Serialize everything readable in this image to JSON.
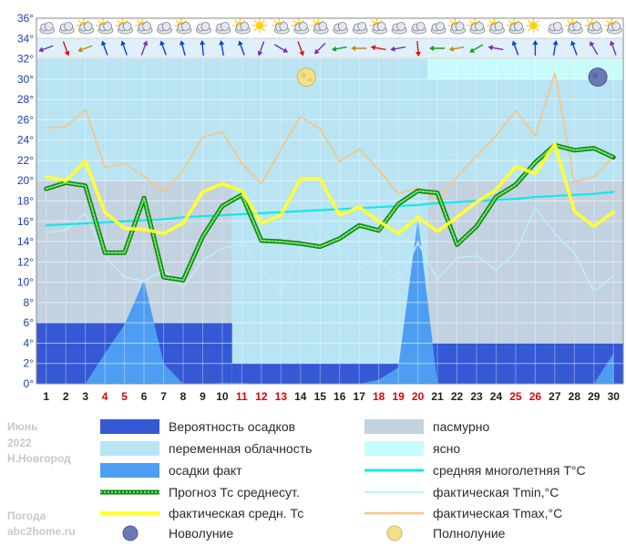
{
  "meta": {
    "month": "Июнь",
    "year": "2022",
    "city": "Н.Новгород",
    "site1": "Погода",
    "site2": "abc2home.ru"
  },
  "colors": {
    "overcast": "#c3d2e0",
    "variable": "#b9e4f4",
    "clear": "#c8fcfc",
    "prob": "#3558d4",
    "precip": "#4d9ef2",
    "forecast": "#0a8a0a",
    "forecast_dash": "#7ee07e",
    "actual": "#ffff33",
    "climate": "#12e8e8",
    "tmin": "#c0ecf8",
    "tmax": "#f9c47e",
    "red_day": "#e00000",
    "axis_text": "#1a3fb0"
  },
  "legend": [
    {
      "key": "prob",
      "label": "Вероятность осадков"
    },
    {
      "key": "overcast",
      "label": "пасмурно"
    },
    {
      "key": "variable",
      "label": "переменная облачность"
    },
    {
      "key": "clear",
      "label": "ясно"
    },
    {
      "key": "precip",
      "label": "осадки факт"
    },
    {
      "key": "climate",
      "label": "средняя многолетняя T°C"
    },
    {
      "key": "forecast",
      "label": "Прогноз Тс среднесут."
    },
    {
      "key": "tmin",
      "label": "фактическая Tmin,°C"
    },
    {
      "key": "actual",
      "label": "фактическая средн. Тс"
    },
    {
      "key": "tmax",
      "label": "фактическая Tmax,°C"
    },
    {
      "key": "new_moon",
      "label": "Новолуние"
    },
    {
      "key": "full_moon",
      "label": "Полнолуние"
    }
  ],
  "chart_data": {
    "type": "line",
    "ylim": [
      0,
      36
    ],
    "y_ticks": [
      "0°",
      "2°",
      "4°",
      "6°",
      "8°",
      "10°",
      "12°",
      "14°",
      "16°",
      "18°",
      "20°",
      "22°",
      "24°",
      "26°",
      "28°",
      "30°",
      "32°",
      "34°",
      "36°"
    ],
    "x": [
      1,
      2,
      3,
      4,
      5,
      6,
      7,
      8,
      9,
      10,
      11,
      12,
      13,
      14,
      15,
      16,
      17,
      18,
      19,
      20,
      21,
      22,
      23,
      24,
      25,
      26,
      27,
      28,
      29,
      30
    ],
    "x_labels": [
      "1",
      "2",
      "3",
      "4",
      "5",
      "6",
      "7",
      "8",
      "9",
      "10",
      "11",
      "12",
      "13",
      "14",
      "15",
      "16",
      "17",
      "18",
      "19",
      "20",
      "21",
      "22",
      "23",
      "24",
      "25",
      "26",
      "27",
      "28",
      "29",
      "30"
    ],
    "red_days": [
      4,
      5,
      11,
      12,
      13,
      18,
      19,
      20,
      25,
      26
    ],
    "background_bands": [
      {
        "from_day": 0.5,
        "to_day": 10.5,
        "sky": "overcast",
        "top": 20
      },
      {
        "from_day": 0.5,
        "to_day": 10.5,
        "sky": "variable",
        "top": 32
      },
      {
        "from_day": 10.5,
        "to_day": 20.5,
        "sky": "variable",
        "top": 32
      },
      {
        "from_day": 20.5,
        "to_day": 30.5,
        "sky": "overcast",
        "top": 20
      },
      {
        "from_day": 20.5,
        "to_day": 30.5,
        "sky": "variable",
        "top": 30
      },
      {
        "from_day": 20.5,
        "to_day": 30.5,
        "sky": "clear",
        "top": 32
      }
    ],
    "precip_probability_steps": [
      {
        "from_day": 0.5,
        "to_day": 10.5,
        "value": 6
      },
      {
        "from_day": 10.5,
        "to_day": 20.5,
        "value": 2
      },
      {
        "from_day": 20.5,
        "to_day": 30.5,
        "value": 4
      }
    ],
    "series": [
      {
        "name": "осадки факт",
        "key": "precip",
        "values": [
          0,
          0,
          0,
          3,
          5.8,
          10.2,
          2,
          0,
          0,
          0.1,
          0.1,
          0,
          0,
          0,
          0,
          0,
          0,
          0.4,
          1.6,
          16.2,
          0,
          0,
          0,
          0,
          0,
          0,
          0,
          0,
          0,
          3
        ]
      },
      {
        "name": "фактическая Tmin,°C",
        "key": "tmin",
        "values": [
          14.9,
          15.1,
          16.8,
          12.6,
          10.5,
          10.1,
          11.2,
          9.5,
          12.2,
          13.3,
          13.8,
          11.4,
          8.8,
          13.5,
          15.4,
          13.3,
          11.2,
          12.6,
          10,
          13.9,
          10.3,
          12.4,
          12.6,
          11.2,
          13,
          17.3,
          14.8,
          12.9,
          9.1,
          10.6
        ]
      },
      {
        "name": "фактическая Tmax,°C",
        "key": "tmax",
        "values": [
          25.2,
          25.3,
          27,
          21.3,
          21.7,
          20.4,
          18.9,
          21,
          24.3,
          24.8,
          21.7,
          19.7,
          23.1,
          26.3,
          25.1,
          21.9,
          23.1,
          21.1,
          18.7,
          19.3,
          18.1,
          20.4,
          22.4,
          24.4,
          26.9,
          24.4,
          30.6,
          19.9,
          20.4,
          22.4
        ]
      },
      {
        "name": "средняя многолетняя T°C",
        "key": "climate",
        "values": [
          15.6,
          15.7,
          15.8,
          15.9,
          16,
          16.1,
          16.2,
          16.4,
          16.5,
          16.6,
          16.7,
          16.8,
          16.9,
          17,
          17.1,
          17.2,
          17.3,
          17.4,
          17.5,
          17.6,
          17.8,
          17.9,
          18,
          18.1,
          18.2,
          18.4,
          18.5,
          18.6,
          18.7,
          18.9
        ]
      },
      {
        "name": "Прогноз Тс среднесут.",
        "key": "forecast",
        "values": [
          19.2,
          19.8,
          19.5,
          12.9,
          12.9,
          18.3,
          10.5,
          10.2,
          14.5,
          17.5,
          18.6,
          14.1,
          14,
          13.8,
          13.5,
          14.3,
          15.6,
          15.1,
          17.7,
          19,
          18.8,
          13.7,
          15.5,
          18.4,
          19.6,
          21.8,
          23.5,
          23,
          23.2,
          22.3
        ]
      },
      {
        "name": "фактическая средн. Тс",
        "key": "actual",
        "values": [
          20.4,
          20,
          21.9,
          16.9,
          15.3,
          15.2,
          14.8,
          15.8,
          18.9,
          19.7,
          19,
          15.8,
          16.6,
          20.2,
          20.2,
          16.6,
          17.4,
          16,
          14.8,
          16.4,
          15,
          16.4,
          17.9,
          19.1,
          21.4,
          20.7,
          23.6,
          17,
          15.5,
          16.9
        ]
      }
    ],
    "moons": [
      {
        "type": "full_moon",
        "day": 14.3,
        "value": 30.2
      },
      {
        "type": "new_moon",
        "day": 29.2,
        "value": 30.2
      }
    ]
  },
  "icons": {
    "sky": [
      "cloudy-icon",
      "cloudy-icon",
      "sun-cloud-icon",
      "sun-cloud-icon",
      "sun-cloud-icon",
      "sun-cloud-icon",
      "cloudy-icon",
      "sun-cloud-icon",
      "cloudy-icon",
      "cloudy-icon",
      "sun-cloud-icon",
      "sun-icon",
      "sun-cloud-icon",
      "sun-cloud-icon",
      "sun-cloud-icon",
      "cloudy-icon",
      "cloudy-icon",
      "sun-cloud-icon",
      "cloudy-icon",
      "cloudy-icon",
      "cloudy-icon",
      "sun-cloud-icon",
      "sun-cloud-icon",
      "sun-cloud-icon",
      "sun-cloud-icon",
      "sun-icon",
      "cloudy-icon",
      "sun-cloud-icon",
      "sun-cloud-icon",
      "sun-cloud-icon"
    ],
    "wind_angles": [
      70,
      -20,
      70,
      160,
      160,
      200,
      160,
      165,
      175,
      170,
      160,
      20,
      -60,
      -20,
      45,
      80,
      90,
      100,
      80,
      -5,
      90,
      80,
      60,
      100,
      160,
      180,
      190,
      160,
      150,
      160
    ],
    "wind_colors": [
      "#7a2ab8",
      "#e01010",
      "#c08a10",
      "#1040d0",
      "#1040d0",
      "#7a2ab8",
      "#1040d0",
      "#1040d0",
      "#1040d0",
      "#1040d0",
      "#1040d0",
      "#7a2ab8",
      "#7a2ab8",
      "#e01010",
      "#7a2ab8",
      "#10a020",
      "#c08a10",
      "#e01010",
      "#7a2ab8",
      "#e01010",
      "#10a020",
      "#c08a10",
      "#10a020",
      "#7a2ab8",
      "#1040d0",
      "#1040d0",
      "#1040d0",
      "#1040d0",
      "#7a2ab8",
      "#7a2ab8"
    ]
  }
}
